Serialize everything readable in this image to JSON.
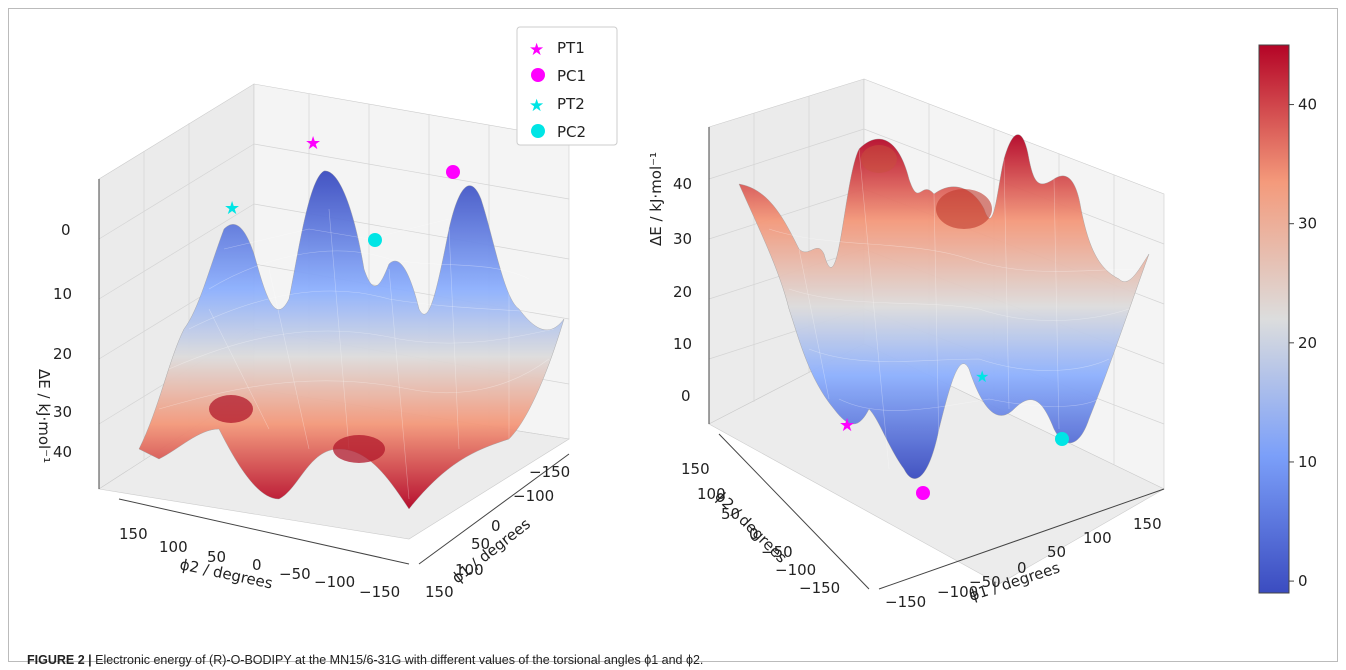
{
  "caption": {
    "label": "FIGURE 2 |",
    "text": "Electronic energy of (R)-O-BODIPY at the MN15/6-31G with different values of the torsional angles ϕ1 and ϕ2."
  },
  "legend": {
    "placement": "top-center",
    "entries": [
      {
        "label": "PT1",
        "marker": "star",
        "color": "#ff00ff"
      },
      {
        "label": "PC1",
        "marker": "circle",
        "color": "#ff00ff"
      },
      {
        "label": "PT2",
        "marker": "star",
        "color": "#00eeee"
      },
      {
        "label": "PC2",
        "marker": "circle",
        "color": "#00eeee"
      }
    ]
  },
  "chart_data": [
    {
      "type": "surface",
      "title": "",
      "xlabel": "ϕ2 / degrees",
      "ylabel": "ϕ1 / degrees",
      "zlabel": "ΔE / kJ·mol⁻¹",
      "x_ticks": [
        "150",
        "100",
        "50",
        "0",
        "−50",
        "−100",
        "−150"
      ],
      "y_ticks": [
        "150",
        "100",
        "50",
        "0",
        "−100",
        "−150"
      ],
      "z_ticks": [
        "0",
        "10",
        "20",
        "30",
        "40"
      ],
      "zlim": [
        0,
        45
      ],
      "z_axis_inverted": true,
      "grid": true,
      "colormap": "coolwarm",
      "markers": [
        {
          "name": "PT1",
          "phi1": 0,
          "phi2": 0,
          "energy": 0
        },
        {
          "name": "PC1",
          "phi1": 150,
          "phi2": 0,
          "energy": 1
        },
        {
          "name": "PT2",
          "phi1": 0,
          "phi2": 150,
          "energy": 2
        },
        {
          "name": "PC2",
          "phi1": 150,
          "phi2": 150,
          "energy": 3
        }
      ]
    },
    {
      "type": "surface",
      "title": "",
      "xlabel": "ϕ1 / degrees",
      "ylabel": "ϕ2 / degrees",
      "zlabel": "ΔE / kJ·mol⁻¹",
      "x_ticks": [
        "−150",
        "−100",
        "−50",
        "0",
        "50",
        "100",
        "150"
      ],
      "y_ticks": [
        "150",
        "100",
        "50",
        "0",
        "−50",
        "−100",
        "−150"
      ],
      "z_ticks": [
        "0",
        "10",
        "20",
        "30",
        "40"
      ],
      "zlim": [
        0,
        45
      ],
      "z_axis_inverted": false,
      "grid": true,
      "colormap": "coolwarm",
      "markers": [
        {
          "name": "PT1",
          "phi1": -150,
          "phi2": 0,
          "energy": 0
        },
        {
          "name": "PC1",
          "phi1": -50,
          "phi2": 50,
          "energy": 1
        },
        {
          "name": "PT2",
          "phi1": 50,
          "phi2": -100,
          "energy": 2
        },
        {
          "name": "PC2",
          "phi1": 150,
          "phi2": 0,
          "energy": 3
        }
      ]
    }
  ],
  "colorbar": {
    "ticks": [
      "40",
      "30",
      "20",
      "10",
      "0"
    ],
    "values": [
      40,
      30,
      20,
      10,
      0
    ],
    "min": -1,
    "max": 45,
    "colors": [
      "#3b4cc0",
      "#7b9ff9",
      "#c0d4f5",
      "#f2cbb7",
      "#ee8468",
      "#b40426"
    ]
  }
}
